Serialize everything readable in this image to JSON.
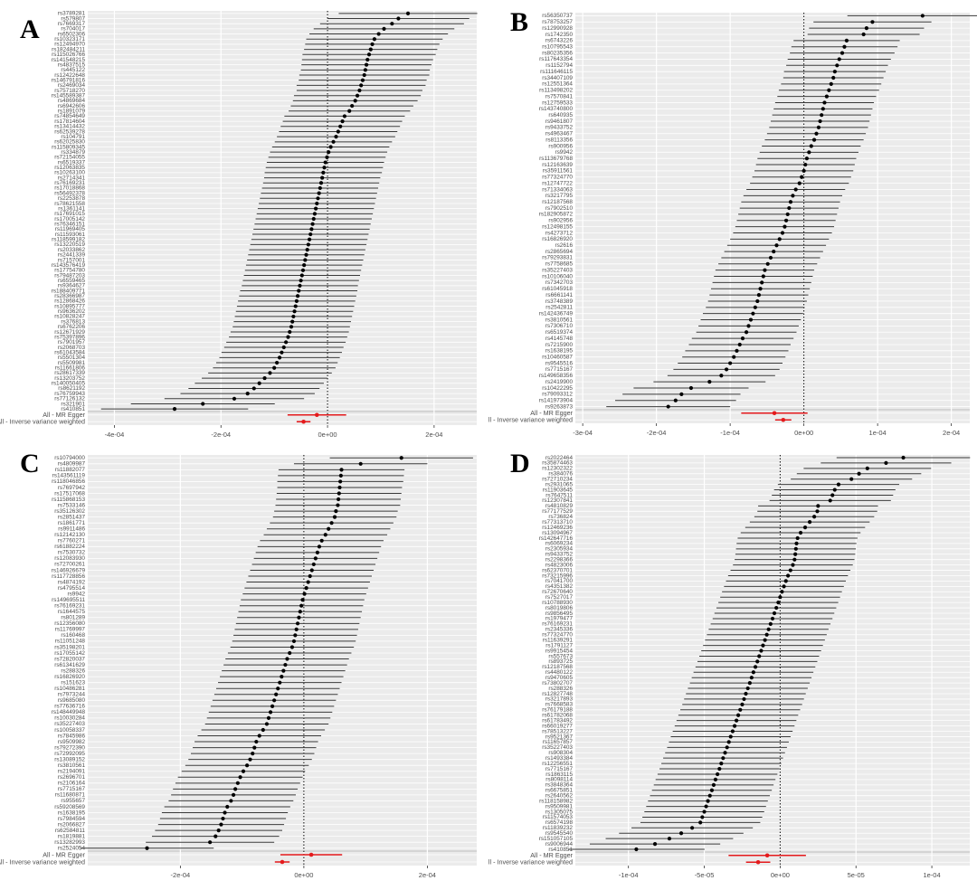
{
  "chart_data": [
    {
      "type": "forest",
      "panel_label": "A",
      "xlim": [
        -0.00045,
        0.00028
      ],
      "ticks": [
        -0.0004,
        -0.0002,
        0,
        0.0002
      ],
      "tick_labels": [
        "-4e-04",
        "-2e-04",
        "0e+00",
        "2e-04"
      ],
      "snps": [
        "rs3789281",
        "rs579807",
        "rs7669317",
        "rs704017",
        "rs6502306",
        "rs10323171",
        "rs12494970",
        "rs182484211",
        "rs115026766",
        "rs141548215",
        "rs4837515",
        "rs445122",
        "rs12422648",
        "rs146791816",
        "rs2469034",
        "rs75718270",
        "rs145589387",
        "rs4869684",
        "rs6942606",
        "rs1891079",
        "rs74854649",
        "rs17814604",
        "rs13414432",
        "rs62539278",
        "rs104791",
        "rs62025830",
        "rs115809345",
        "rs334879",
        "rs72154055",
        "rs6519337",
        "rs12063835",
        "rs10263100",
        "rs2714341",
        "rs76169231",
        "rs17018868",
        "rs56492378",
        "rs2253878",
        "rs78621558",
        "rs1361141",
        "rs17691015",
        "rs17005142",
        "rs76346151",
        "rs11969405",
        "rs11593061",
        "rs118599182",
        "rs13220519",
        "rs2033862",
        "rs2441339",
        "rs7157001",
        "rs143576419",
        "rs17754780",
        "rs79487203",
        "rs6559465",
        "rs9364627",
        "rs188409771",
        "rs28366987",
        "rs12868426",
        "rs10895777",
        "rs9636202",
        "rs10828247",
        "rs376813",
        "rs6762206",
        "rs12671929",
        "rs75397896",
        "rs7901957",
        "rs2068703",
        "rs61043584",
        "rs5501304",
        "rs5509981",
        "rs11661806",
        "rs28617339",
        "rs13203752",
        "rs140050405",
        "rs8621192",
        "rs76759943",
        "rs77126132",
        "rs321901",
        "rs410851"
      ],
      "estimates": [
        0.000151,
        0.000133,
        0.000121,
        0.000106,
        9.6e-05,
        8.8e-05,
        8.4e-05,
        8.1e-05,
        7.8e-05,
        7.5e-05,
        7.3e-05,
        7.1e-05,
        6.9e-05,
        6.6e-05,
        6.3e-05,
        6e-05,
        5.6e-05,
        5.2e-05,
        4.6e-05,
        4.1e-05,
        3.2e-05,
        2.8e-05,
        2.4e-05,
        2e-05,
        1.6e-05,
        1.1e-05,
        6e-06,
        2e-06,
        -1e-06,
        -4e-06,
        -6e-06,
        -8e-06,
        -1e-05,
        -1.2e-05,
        -1.4e-05,
        -1.6e-05,
        -1.8e-05,
        -2e-05,
        -2.2e-05,
        -2.4e-05,
        -2.6e-05,
        -2.8e-05,
        -3e-05,
        -3.2e-05,
        -3.4e-05,
        -3.6e-05,
        -3.8e-05,
        -4e-05,
        -4.2e-05,
        -4.4e-05,
        -4.6e-05,
        -4.8e-05,
        -5e-05,
        -5.2e-05,
        -5.4e-05,
        -5.6e-05,
        -5.8e-05,
        -6e-05,
        -6.2e-05,
        -6.4e-05,
        -6.6e-05,
        -6.8e-05,
        -7.1e-05,
        -7.4e-05,
        -7.8e-05,
        -8.2e-05,
        -8.6e-05,
        -9e-05,
        -9.5e-05,
        -0.0001,
        -0.000108,
        -0.000118,
        -0.000128,
        -0.000138,
        -0.00015,
        -0.000175,
        -0.000234,
        -0.000287
      ],
      "half_widths": [
        0.00013,
        0.000133,
        0.000135,
        0.000132,
        0.00013,
        0.000128,
        0.000126,
        0.000125,
        0.000125,
        0.000123,
        0.000122,
        0.000121,
        0.000122,
        0.00012,
        0.000121,
        0.000118,
        0.000119,
        0.000117,
        0.000115,
        0.000114,
        0.000113,
        0.000112,
        0.000112,
        0.000111,
        0.000111,
        0.00011,
        0.00011,
        0.00011,
        0.00011,
        0.00011,
        0.00011,
        0.00011,
        0.000109,
        0.000109,
        0.000109,
        0.000109,
        0.000109,
        0.000109,
        0.000109,
        0.000109,
        0.000109,
        0.000109,
        0.000109,
        0.000109,
        0.000109,
        0.000109,
        0.000109,
        0.000109,
        0.000109,
        0.000109,
        0.000109,
        0.000109,
        0.000109,
        0.000109,
        0.00011,
        0.00011,
        0.00011,
        0.00011,
        0.00011,
        0.00011,
        0.00011,
        0.00011,
        0.000111,
        0.000111,
        0.000112,
        0.000112,
        0.000113,
        0.000113,
        0.000114,
        0.000115,
        0.000116,
        0.000118,
        0.000121,
        0.000123,
        0.000126,
        0.000131,
        0.000135,
        0.000138
      ],
      "summary": [
        {
          "name": "All - MR Egger",
          "est": -2e-05,
          "lo": -7.5e-05,
          "hi": 3.5e-05,
          "color": "#e41a1c"
        },
        {
          "name": "All - Inverse variance weighted",
          "est": -4.5e-05,
          "lo": -5.8e-05,
          "hi": -3.2e-05,
          "color": "#e41a1c"
        }
      ]
    },
    {
      "type": "forest",
      "panel_label": "B",
      "xlim": [
        -0.00031,
        0.000225
      ],
      "ticks": [
        -0.0003,
        -0.0002,
        -0.0001,
        0,
        0.0001,
        0.0002
      ],
      "tick_labels": [
        "-3e-04",
        "-2e-04",
        "-1e-04",
        "0e+00",
        "1e-04",
        "2e-04"
      ],
      "snps": [
        "rs56350737",
        "rs78753257",
        "rs12990928",
        "rs1742350",
        "rs6743226",
        "rs10795543",
        "rs80235356",
        "rs117643354",
        "rs1152794",
        "rs111646115",
        "rs34407109",
        "rs12551364",
        "rs113498202",
        "rs7570841",
        "rs12759533",
        "rs143740800",
        "rs640935",
        "rs9461807",
        "rs9433752",
        "rs4963467",
        "rs8113356",
        "rs900956",
        "rs9942",
        "rs113679768",
        "rs12163639",
        "rs35911561",
        "rs77324770",
        "rs12747722",
        "rs71334063",
        "rs3217795",
        "rs12187568",
        "rs7902510",
        "rs182905872",
        "rs902956",
        "rs12498155",
        "rs4273712",
        "rs16826920",
        "rs2616",
        "rs2865694",
        "rs79293831",
        "rs7758685",
        "rs35227403",
        "rs10106040",
        "rs7342703",
        "rs61045918",
        "rs6661141",
        "rs3748389",
        "rs2542811",
        "rs142436749",
        "rs3810561",
        "rs7306710",
        "rs6519374",
        "rs4145748",
        "rs7215900",
        "rs1638195",
        "rs10460587",
        "rs9545516",
        "rs7715167",
        "rs149658356",
        "rs2419900",
        "rs10422295",
        "rs79093312",
        "rs141973904",
        "rs9263873"
      ],
      "estimates": [
        0.000161,
        9.3e-05,
        8.5e-05,
        8.1e-05,
        5.8e-05,
        5.5e-05,
        5.2e-05,
        4.8e-05,
        4.5e-05,
        4.2e-05,
        4e-05,
        3.7e-05,
        3.4e-05,
        3.1e-05,
        2.8e-05,
        2.6e-05,
        2.4e-05,
        2.2e-05,
        2e-05,
        1.7e-05,
        1.4e-05,
        1e-05,
        7e-06,
        4e-06,
        2e-06,
        0,
        -3e-06,
        -6e-06,
        -1.1e-05,
        -1.5e-05,
        -1.8e-05,
        -2e-05,
        -2.2e-05,
        -2.4e-05,
        -2.6e-05,
        -2.9e-05,
        -3.3e-05,
        -3.7e-05,
        -4.1e-05,
        -4.5e-05,
        -4.9e-05,
        -5.3e-05,
        -5.5e-05,
        -5.7e-05,
        -5.9e-05,
        -6.1e-05,
        -6.3e-05,
        -6.6e-05,
        -6.9e-05,
        -7.2e-05,
        -7.5e-05,
        -7.8e-05,
        -8.3e-05,
        -8.7e-05,
        -9.1e-05,
        -9.5e-05,
        -0.0001,
        -0.000105,
        -0.000112,
        -0.000128,
        -0.000153,
        -0.000166,
        -0.000174,
        -0.000184
      ],
      "half_widths": [
        0.000102,
        8e-05,
        7.8e-05,
        7.6e-05,
        7.2e-05,
        7.2e-05,
        7.1e-05,
        7e-05,
        6.9e-05,
        6.9e-05,
        6.8e-05,
        6.8e-05,
        6.8e-05,
        6.7e-05,
        6.7e-05,
        6.7e-05,
        6.7e-05,
        6.7e-05,
        6.7e-05,
        6.7e-05,
        6.7e-05,
        6.7e-05,
        6.7e-05,
        6.7e-05,
        6.7e-05,
        6.7e-05,
        6.7e-05,
        6.7e-05,
        6.7e-05,
        6.7e-05,
        6.7e-05,
        6.7e-05,
        6.7e-05,
        6.7e-05,
        6.7e-05,
        6.7e-05,
        6.7e-05,
        6.7e-05,
        6.7e-05,
        6.7e-05,
        6.7e-05,
        6.7e-05,
        6.7e-05,
        6.7e-05,
        6.7e-05,
        6.7e-05,
        6.7e-05,
        6.7e-05,
        6.8e-05,
        6.8e-05,
        6.8e-05,
        6.8e-05,
        6.9e-05,
        6.9e-05,
        7e-05,
        7e-05,
        7.1e-05,
        7.2e-05,
        7.3e-05,
        7.6e-05,
        7.8e-05,
        8e-05,
        8.2e-05,
        8.4e-05
      ],
      "summary": [
        {
          "name": "All - MR Egger",
          "est": -4e-05,
          "lo": -8.5e-05,
          "hi": 5e-06,
          "color": "#e41a1c"
        },
        {
          "name": "All - Inverse variance weighted",
          "est": -2.8e-05,
          "lo": -3.9e-05,
          "hi": -1.7e-05,
          "color": "#e41a1c"
        }
      ]
    },
    {
      "type": "forest",
      "panel_label": "C",
      "xlim": [
        -0.00035,
        0.00028
      ],
      "ticks": [
        -0.0002,
        0,
        0.0002
      ],
      "tick_labels": [
        "-2e-04",
        "0e+00",
        "2e-04"
      ],
      "snps": [
        "rs10794000",
        "rs4809987",
        "rs11882077",
        "rs143561119",
        "rs118046856",
        "rs7697942",
        "rs17517068",
        "rs115868153",
        "rs7533146",
        "rs35126302",
        "rs2851437",
        "rs1861771",
        "rs9911486",
        "rs12142130",
        "rs7760271",
        "rs61882224",
        "rs7530732",
        "rs12083930",
        "rs72700261",
        "rs146926679",
        "rs117728856",
        "rs4874192",
        "rs4795514",
        "rs9942",
        "rs149695511",
        "rs76169231",
        "rs1644575",
        "rs801289",
        "rs12356080",
        "rs11769997",
        "rs160468",
        "rs11051248",
        "rs35198201",
        "rs17055142",
        "rs72820037",
        "rs61341629",
        "rs288326",
        "rs16826920",
        "rs151623",
        "rs10486281",
        "rs7973244",
        "rs9685080",
        "rs77636716",
        "rs148449948",
        "rs10030284",
        "rs35227403",
        "rs10058337",
        "rs7845986",
        "rs9509982",
        "rs79272390",
        "rs72992095",
        "rs13089152",
        "rs3810561",
        "rs2194091",
        "rs2696701",
        "rs2106164",
        "rs7715167",
        "rs11680871",
        "rs955657",
        "rs59208569",
        "rs1638195",
        "rs7984594",
        "rs2066827",
        "rs62584811",
        "rs1819881",
        "rs13282993",
        "rs2524054"
      ],
      "estimates": [
        0.000158,
        9.2e-05,
        6.1e-05,
        6e-05,
        5.9e-05,
        5.8e-05,
        5.7e-05,
        5.6e-05,
        5.5e-05,
        5.2e-05,
        5e-05,
        4.5e-05,
        4e-05,
        3.5e-05,
        2.9e-05,
        2.5e-05,
        2.2e-05,
        1.9e-05,
        1.6e-05,
        1.3e-05,
        1e-05,
        7e-06,
        4e-06,
        1e-06,
        -2e-06,
        -4e-06,
        -6e-06,
        -8e-06,
        -1e-05,
        -1.2e-05,
        -1.4e-05,
        -1.6e-05,
        -1.9e-05,
        -2.3e-05,
        -2.7e-05,
        -3e-05,
        -3.3e-05,
        -3.6e-05,
        -3.9e-05,
        -4.2e-05,
        -4.5e-05,
        -4.8e-05,
        -5.1e-05,
        -5.4e-05,
        -5.7e-05,
        -6e-05,
        -6.6e-05,
        -7.2e-05,
        -7.7e-05,
        -8e-05,
        -8.3e-05,
        -8.7e-05,
        -9.2e-05,
        -9.8e-05,
        -0.000103,
        -0.000107,
        -0.000111,
        -0.000114,
        -0.000118,
        -0.000124,
        -0.000128,
        -0.000131,
        -0.000134,
        -0.000138,
        -0.000143,
        -0.000152,
        -0.000254
      ],
      "half_widths": [
        0.000116,
        0.000108,
        0.000102,
        0.000102,
        0.000102,
        0.000101,
        0.000101,
        0.000101,
        0.000101,
        0.0001,
        0.0001,
        0.0001,
        0.0001,
        0.0001,
        0.0001,
        0.0001,
        0.0001,
        0.0001,
        0.0001,
        0.0001,
        0.0001,
        0.0001,
        0.0001,
        0.0001,
        0.0001,
        0.0001,
        0.0001,
        0.0001,
        0.0001,
        0.0001,
        0.0001,
        0.0001,
        0.0001,
        0.0001,
        0.0001,
        0.0001,
        0.0001,
        0.0001,
        0.0001,
        0.0001,
        0.0001,
        0.0001,
        0.0001,
        0.0001,
        0.0001,
        0.0001,
        0.0001,
        0.0001,
        0.0001,
        0.0001,
        0.0001,
        0.0001,
        0.0001,
        0.0001,
        0.000101,
        0.000101,
        0.000101,
        0.000101,
        0.000101,
        0.000102,
        0.000102,
        0.000102,
        0.000102,
        0.000103,
        0.000103,
        0.000104,
        0.000108
      ],
      "summary": [
        {
          "name": "All - MR Egger",
          "est": 1.2e-05,
          "lo": -3.8e-05,
          "hi": 6.2e-05,
          "color": "#e41a1c"
        },
        {
          "name": "All - Inverse variance weighted",
          "est": -3.5e-05,
          "lo": -4.7e-05,
          "hi": -2.3e-05,
          "color": "#e41a1c"
        }
      ]
    },
    {
      "type": "forest",
      "panel_label": "D",
      "xlim": [
        -0.000135,
        0.000125
      ],
      "ticks": [
        -0.0001,
        -5e-05,
        0,
        5e-05,
        0.0001
      ],
      "tick_labels": [
        "-1e-04",
        "-5e-05",
        "0e+00",
        "5e-05",
        "1e-04"
      ],
      "snps": [
        "rs2022464",
        "rs35874463",
        "rs12302322",
        "rs384076",
        "rs72710234",
        "rs2931065",
        "rs11903645",
        "rs7647511",
        "rs12307841",
        "rs4810829",
        "rs77177529",
        "rs736824",
        "rs77313710",
        "rs12469236",
        "rs13094967",
        "rs142647716",
        "rs6069234",
        "rs2305934",
        "rs9433752",
        "rs2298366",
        "rs4823006",
        "rs62370701",
        "rs73215996",
        "rs7041700",
        "rs4351382",
        "rs72670640",
        "rs7527017",
        "rs10788930",
        "rs8019806",
        "rs9856495",
        "rs1979477",
        "rs76169231",
        "rs2345336",
        "rs77324770",
        "rs11639291",
        "rs1791127",
        "rs9915454",
        "rs557673",
        "rs893725",
        "rs12187568",
        "rs4480122",
        "rs9470605",
        "rs73802707",
        "rs288326",
        "rs12827748",
        "rs3217893",
        "rs7668583",
        "rs76179188",
        "rs61782068",
        "rs61783492",
        "rs66019277",
        "rs78513227",
        "rs9521367",
        "rs11657857",
        "rs35227403",
        "rs908304",
        "rs1493384",
        "rs12256551",
        "rs7715167",
        "rs1863115",
        "rs8098114",
        "rs3848364",
        "rs6675851",
        "rs2640562",
        "rs118158982",
        "rs9509981",
        "rs1305075",
        "rs11574053",
        "rs6574198",
        "rs11839232",
        "rs9545540",
        "rs151057105",
        "rs9006944",
        "rs410851"
      ],
      "estimates": [
        8.12e-05,
        6.98e-05,
        5.75e-05,
        5.2e-05,
        4.7e-05,
        3.85e-05,
        3.6e-05,
        3.45e-05,
        3.3e-05,
        2.5e-05,
        2.45e-05,
        2.25e-05,
        1.95e-05,
        1.65e-05,
        1.35e-05,
        1.15e-05,
        1.08e-05,
        1.04e-05,
        1e-05,
        9.5e-06,
        8.4e-06,
        6.8e-06,
        5.2e-06,
        3.8e-06,
        2.5e-06,
        1.2e-06,
        0,
        -1.2e-06,
        -2.5e-06,
        -3.8e-06,
        -5e-06,
        -6.3e-06,
        -7.6e-06,
        -8.8e-06,
        -1e-05,
        -1.13e-05,
        -1.25e-05,
        -1.38e-05,
        -1.5e-05,
        -1.63e-05,
        -1.76e-05,
        -1.88e-05,
        -2e-05,
        -2.13e-05,
        -2.26e-05,
        -2.38e-05,
        -2.5e-05,
        -2.63e-05,
        -2.76e-05,
        -2.88e-05,
        -3e-05,
        -3.13e-05,
        -3.26e-05,
        -3.38e-05,
        -3.5e-05,
        -3.63e-05,
        -3.76e-05,
        -3.88e-05,
        -4e-05,
        -4.13e-05,
        -4.26e-05,
        -4.38e-05,
        -4.5e-05,
        -4.63e-05,
        -4.76e-05,
        -4.88e-05,
        -5e-05,
        -5.13e-05,
        -5.26e-05,
        -5.8e-05,
        -6.52e-05,
        -7.3e-05,
        -8.25e-05,
        -9.48e-05
      ],
      "half_widths": [
        4.4e-05,
        4.3e-05,
        4.2e-05,
        4.1e-05,
        4e-05,
        4e-05,
        4e-05,
        4e-05,
        4e-05,
        3.95e-05,
        3.95e-05,
        3.95e-05,
        3.95e-05,
        3.95e-05,
        3.95e-05,
        3.95e-05,
        3.95e-05,
        3.95e-05,
        3.95e-05,
        3.95e-05,
        3.95e-05,
        3.95e-05,
        3.95e-05,
        3.95e-05,
        3.95e-05,
        3.95e-05,
        3.95e-05,
        3.95e-05,
        3.95e-05,
        3.95e-05,
        3.95e-05,
        3.95e-05,
        3.95e-05,
        3.95e-05,
        3.95e-05,
        3.95e-05,
        3.95e-05,
        3.95e-05,
        3.95e-05,
        3.95e-05,
        3.95e-05,
        3.95e-05,
        3.95e-05,
        3.95e-05,
        3.95e-05,
        3.95e-05,
        3.95e-05,
        3.95e-05,
        3.95e-05,
        3.95e-05,
        3.95e-05,
        3.95e-05,
        3.95e-05,
        3.95e-05,
        3.95e-05,
        3.95e-05,
        3.95e-05,
        3.95e-05,
        3.95e-05,
        3.95e-05,
        3.95e-05,
        3.95e-05,
        3.95e-05,
        3.95e-05,
        3.95e-05,
        3.95e-05,
        3.95e-05,
        3.95e-05,
        3.95e-05,
        4e-05,
        4.1e-05,
        4.2e-05,
        4.3e-05,
        4.5e-05
      ],
      "summary": [
        {
          "name": "All - MR Egger",
          "est": -8.5e-06,
          "lo": -3.4e-05,
          "hi": 1.7e-05,
          "color": "#e41a1c"
        },
        {
          "name": "All - Inverse variance weighted",
          "est": -1.45e-05,
          "lo": -2.25e-05,
          "hi": -6.5e-06,
          "color": "#e41a1c"
        }
      ]
    }
  ],
  "colors": {
    "panel_background": "#ebebeb",
    "grid": "#ffffff",
    "interval": "#3a3a3a",
    "point": "#000000",
    "summary": "#e41a1c",
    "zero_line": "#000000",
    "text": "#4d4d4d"
  }
}
